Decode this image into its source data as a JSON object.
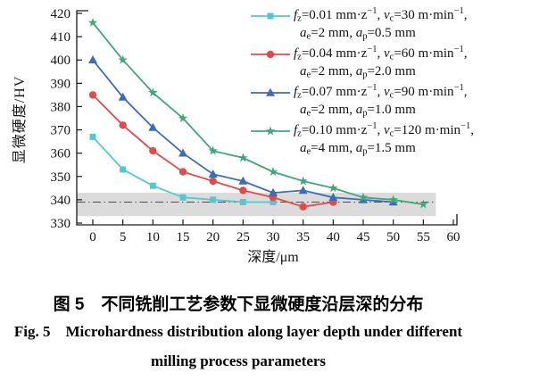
{
  "figure": {
    "caption_zh": "图 5 不同铣削工艺参数下显微硬度沿层深的分布",
    "caption_en_line1": "Fig. 5 Microhardness distribution along layer depth under different",
    "caption_en_line2": "milling process parameters"
  },
  "chart_data": {
    "type": "line",
    "title": "",
    "xlabel": "深度/μm",
    "ylabel": "显微硬度/HV",
    "xlim": [
      0,
      60
    ],
    "ylim": [
      330,
      420
    ],
    "x_ticks": [
      0,
      5,
      10,
      15,
      20,
      25,
      30,
      35,
      40,
      45,
      50,
      55,
      60
    ],
    "y_ticks": [
      330,
      340,
      350,
      360,
      370,
      380,
      390,
      400,
      410,
      420
    ],
    "grid": false,
    "legend_position": "top-right",
    "x": [
      0,
      5,
      10,
      15,
      20,
      25,
      30,
      35,
      40,
      45,
      50,
      55
    ],
    "series": [
      {
        "name": "fz=0.01 mm·z−1, vc=30 m·min−1, ae=2 mm, ap=0.5 mm",
        "marker": "square",
        "color": "#58C6D0",
        "values": [
          367,
          353,
          346,
          341,
          340,
          339,
          339
        ],
        "legend": {
          "line1": [
            {
              "it": "f"
            },
            {
              "sub": "z"
            },
            {
              "tx": "=0.01 mm·z"
            },
            {
              "sup": "−1"
            },
            {
              "tx": ", "
            },
            {
              "it": "v"
            },
            {
              "sub": "c"
            },
            {
              "tx": "=30 m·min"
            },
            {
              "sup": "−1"
            },
            {
              "tx": ","
            }
          ],
          "line2": [
            {
              "it": "a"
            },
            {
              "sub": "e"
            },
            {
              "tx": "=2 mm, "
            },
            {
              "it": "a"
            },
            {
              "sub": "p"
            },
            {
              "tx": "=0.5 mm"
            }
          ]
        }
      },
      {
        "name": "fz=0.04 mm·z−1, vc=60 m·min−1, ae=2 mm, ap=2.0 mm",
        "marker": "circle",
        "color": "#E24B4B",
        "values": [
          385,
          372,
          361,
          352,
          348,
          344,
          341,
          337,
          339
        ],
        "legend": {
          "line1": [
            {
              "it": "f"
            },
            {
              "sub": "z"
            },
            {
              "tx": "=0.04 mm·z"
            },
            {
              "sup": "−1"
            },
            {
              "tx": ", "
            },
            {
              "it": "v"
            },
            {
              "sub": "c"
            },
            {
              "tx": "=60 m·min"
            },
            {
              "sup": "−1"
            },
            {
              "tx": ","
            }
          ],
          "line2": [
            {
              "it": "a"
            },
            {
              "sub": "e"
            },
            {
              "tx": "=2 mm, "
            },
            {
              "it": "a"
            },
            {
              "sub": "p"
            },
            {
              "tx": "=2.0 mm"
            }
          ]
        }
      },
      {
        "name": "fz=0.07 mm·z−1, vc=90 m·min−1, ae=2 mm, ap=1.0 mm",
        "marker": "triangle",
        "color": "#3B6DB5",
        "values": [
          400,
          384,
          371,
          360,
          351,
          348,
          343,
          344,
          341,
          340,
          339
        ],
        "legend": {
          "line1": [
            {
              "it": "f"
            },
            {
              "sub": "z"
            },
            {
              "tx": "=0.07 mm·z"
            },
            {
              "sup": "−1"
            },
            {
              "tx": ", "
            },
            {
              "it": "v"
            },
            {
              "sub": "c"
            },
            {
              "tx": "=90 m·min"
            },
            {
              "sup": "−1"
            },
            {
              "tx": ","
            }
          ],
          "line2": [
            {
              "it": "a"
            },
            {
              "sub": "e"
            },
            {
              "tx": "=2 mm, "
            },
            {
              "it": "a"
            },
            {
              "sub": "p"
            },
            {
              "tx": "=1.0 mm"
            }
          ]
        }
      },
      {
        "name": "fz=0.10 mm·z−1, vc=120 m·min−1, ae=4 mm, ap=1.5 mm",
        "marker": "star",
        "color": "#3FA878",
        "values": [
          416,
          400,
          386,
          375,
          361,
          358,
          352,
          348,
          345,
          341,
          340,
          338
        ],
        "legend": {
          "line1": [
            {
              "it": "f"
            },
            {
              "sub": "z"
            },
            {
              "tx": "=0.10 mm·z"
            },
            {
              "sup": "−1"
            },
            {
              "tx": ", "
            },
            {
              "it": "v"
            },
            {
              "sub": "c"
            },
            {
              "tx": "=120 m·min"
            },
            {
              "sup": "−1"
            },
            {
              "tx": ","
            }
          ],
          "line2": [
            {
              "it": "a"
            },
            {
              "sub": "e"
            },
            {
              "tx": "=4 mm, "
            },
            {
              "it": "a"
            },
            {
              "sub": "p"
            },
            {
              "tx": "=1.5 mm"
            }
          ]
        }
      }
    ],
    "reference_band": {
      "hv_min": 333,
      "hv_max": 343,
      "depth_end": 57,
      "color": "#DBDBDB"
    },
    "reference_line": {
      "hv": 339,
      "style": "dash-dot",
      "color": "#4F4F4F"
    },
    "axis_color": "#1a1a1a"
  }
}
